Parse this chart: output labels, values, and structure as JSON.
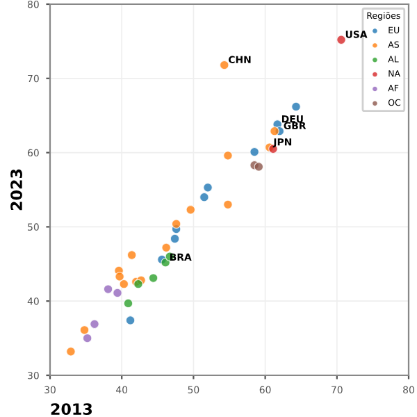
{
  "chart_data": {
    "type": "scatter",
    "xlabel": "2013",
    "ylabel": "2023",
    "legend_title": "Regiões",
    "legend": "top right",
    "grid": true,
    "xlim": [
      30,
      80
    ],
    "ylim": [
      30,
      80
    ],
    "xticks": [
      30,
      40,
      50,
      60,
      70,
      80
    ],
    "yticks": [
      30,
      40,
      50,
      60,
      70,
      80
    ],
    "series": [
      {
        "name": "EU",
        "color": "#1f77b4",
        "x": [
          64.3,
          61.7,
          62.0,
          58.5,
          52.0,
          51.5,
          47.6,
          47.4,
          45.6,
          41.2
        ],
        "values": [
          66.2,
          63.8,
          62.9,
          60.1,
          55.3,
          54.0,
          49.7,
          48.4,
          45.6,
          37.4
        ]
      },
      {
        "name": "AS",
        "color": "#ff7f0e",
        "x": [
          54.3,
          61.3,
          60.6,
          54.8,
          54.8,
          49.6,
          47.6,
          46.2,
          41.4,
          39.6,
          39.7,
          40.3,
          42.0,
          42.7,
          34.8,
          32.9
        ],
        "values": [
          71.8,
          62.9,
          60.7,
          59.6,
          53.0,
          52.3,
          50.4,
          47.2,
          46.2,
          44.1,
          43.3,
          42.3,
          42.6,
          42.8,
          36.1,
          33.2
        ]
      },
      {
        "name": "AL",
        "color": "#2ca02c",
        "x": [
          46.1,
          46.7,
          42.3,
          44.4,
          40.9
        ],
        "values": [
          45.2,
          46.0,
          42.3,
          43.1,
          39.7
        ]
      },
      {
        "name": "NA",
        "color": "#d62728",
        "x": [
          70.6,
          61.1
        ],
        "values": [
          75.2,
          60.5
        ]
      },
      {
        "name": "AF",
        "color": "#9467bd",
        "x": [
          38.1,
          39.4,
          36.2,
          35.2
        ],
        "values": [
          41.6,
          41.1,
          36.9,
          35.0
        ]
      },
      {
        "name": "OC",
        "color": "#8c564b",
        "x": [
          58.5,
          59.1
        ],
        "values": [
          58.3,
          58.1
        ]
      }
    ],
    "annotations": [
      {
        "text": "USA",
        "x": 70.6,
        "y": 75.2
      },
      {
        "text": "CHN",
        "x": 54.3,
        "y": 71.8
      },
      {
        "text": "DEU",
        "x": 61.7,
        "y": 63.8
      },
      {
        "text": "GBR",
        "x": 62.0,
        "y": 62.9
      },
      {
        "text": "JPN",
        "x": 60.6,
        "y": 60.7
      },
      {
        "text": "BRA",
        "x": 46.1,
        "y": 45.2
      }
    ]
  }
}
